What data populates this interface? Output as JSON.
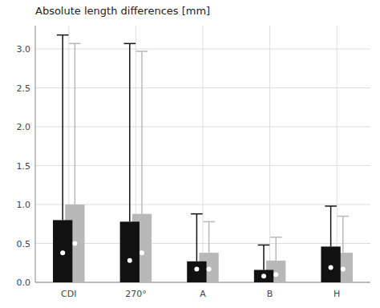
{
  "chart_data": {
    "type": "box",
    "title": "Absolute length differences [mm]",
    "categories": [
      "CDI",
      "270°",
      "A",
      "B",
      "H"
    ],
    "series": [
      {
        "color": "#111111",
        "q1": [
          0.0,
          0.0,
          0.0,
          0.0,
          0.0
        ],
        "median": [
          0.38,
          0.28,
          0.17,
          0.08,
          0.19
        ],
        "q3": [
          0.8,
          0.78,
          0.27,
          0.16,
          0.46
        ],
        "whisker_low": [
          0.0,
          0.0,
          0.0,
          0.0,
          0.0
        ],
        "whisker_high": [
          3.18,
          3.07,
          0.88,
          0.48,
          0.98
        ]
      },
      {
        "color": "#b8b8b8",
        "q1": [
          0.0,
          0.0,
          0.0,
          0.0,
          0.0
        ],
        "median": [
          0.5,
          0.38,
          0.17,
          0.1,
          0.17
        ],
        "q3": [
          1.0,
          0.88,
          0.38,
          0.28,
          0.38
        ],
        "whisker_low": [
          0.0,
          0.0,
          0.0,
          0.0,
          0.0
        ],
        "whisker_high": [
          3.07,
          2.97,
          0.78,
          0.58,
          0.85
        ]
      }
    ],
    "ylim": [
      0,
      3.3
    ],
    "yticks": [
      {
        "value": 0.0,
        "label": "0.0"
      },
      0.5,
      {
        "value": 1.0,
        "label": "1.0"
      },
      1.5,
      {
        "value": 2.0,
        "label": "2.0"
      },
      2.5,
      {
        "value": 3.0,
        "label": "3.0"
      }
    ],
    "grid": true
  }
}
